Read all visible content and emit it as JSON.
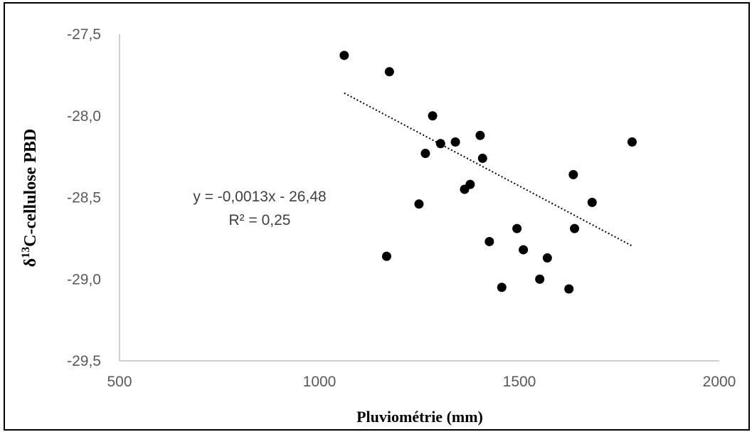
{
  "chart_data": {
    "type": "scatter",
    "xlabel": "Pluviométrie (mm)",
    "ylabel": {
      "symbol": "δ",
      "superscript": "13",
      "text": "C-cellulose PBD"
    },
    "xlim": [
      500,
      2000
    ],
    "ylim": [
      -29.5,
      -27.5
    ],
    "x_ticks": [
      500,
      1000,
      1500,
      2000
    ],
    "x_tick_labels": [
      "500",
      "1000",
      "1500",
      "2000"
    ],
    "y_ticks": [
      -27.5,
      -28.0,
      -28.5,
      -29.0,
      -29.5
    ],
    "y_tick_labels": [
      "-27,5",
      "-28,0",
      "-28,5",
      "-29,0",
      "-29,5"
    ],
    "grid": false,
    "legend": "none",
    "points": [
      {
        "x": 1062,
        "y": -27.63
      },
      {
        "x": 1175,
        "y": -27.73
      },
      {
        "x": 1283,
        "y": -28.0
      },
      {
        "x": 1303,
        "y": -28.17
      },
      {
        "x": 1340,
        "y": -28.16
      },
      {
        "x": 1265,
        "y": -28.23
      },
      {
        "x": 1402,
        "y": -28.12
      },
      {
        "x": 1408,
        "y": -28.26
      },
      {
        "x": 1377,
        "y": -28.42
      },
      {
        "x": 1363,
        "y": -28.45
      },
      {
        "x": 1249,
        "y": -28.54
      },
      {
        "x": 1168,
        "y": -28.86
      },
      {
        "x": 1425,
        "y": -28.77
      },
      {
        "x": 1494,
        "y": -28.69
      },
      {
        "x": 1510,
        "y": -28.82
      },
      {
        "x": 1570,
        "y": -28.87
      },
      {
        "x": 1551,
        "y": -29.0
      },
      {
        "x": 1456,
        "y": -29.05
      },
      {
        "x": 1624,
        "y": -29.06
      },
      {
        "x": 1635,
        "y": -28.36
      },
      {
        "x": 1638,
        "y": -28.69
      },
      {
        "x": 1682,
        "y": -28.53
      },
      {
        "x": 1782,
        "y": -28.16
      }
    ],
    "trendline": {
      "style": "dotted",
      "color": "#000000",
      "x_range": [
        1062,
        1782
      ],
      "slope": -0.0013,
      "intercept": -26.48,
      "equation": "y = -0,0013x - 26,48",
      "r2": "R² = 0,25"
    },
    "colors": {
      "marker": "#000000",
      "axis": "#bfbfbf",
      "tick_text": "#595959"
    }
  }
}
